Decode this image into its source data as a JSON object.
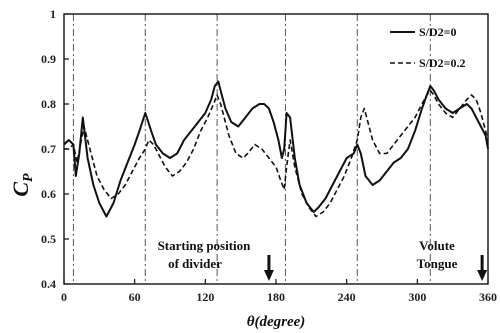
{
  "chart_data": {
    "type": "line",
    "title": "",
    "xlabel_symbol": "θ",
    "xlabel_unit": "(degree)",
    "ylabel_main": "C",
    "ylabel_sub": "P",
    "xlim": [
      0,
      360
    ],
    "ylim": [
      0.4,
      1.0
    ],
    "xticks": [
      0,
      60,
      120,
      180,
      240,
      300,
      360
    ],
    "yticks": [
      0.4,
      0.5,
      0.6,
      0.7,
      0.8,
      0.9,
      1.0
    ],
    "ytick_labels": [
      "0.4",
      "0.5",
      "0.6",
      "0.7",
      "0.8",
      "0.9",
      "1"
    ],
    "vertical_refs": [
      8,
      69,
      130,
      188,
      249,
      311
    ],
    "legend_position": "top-right",
    "series": [
      {
        "name": "S/D2=0",
        "style": "solid",
        "x": [
          0,
          4,
          8,
          10,
          13,
          16,
          20,
          25,
          30,
          36,
          42,
          48,
          54,
          60,
          64,
          69,
          74,
          78,
          84,
          90,
          96,
          102,
          108,
          114,
          120,
          125,
          128,
          131,
          134,
          137,
          142,
          148,
          154,
          160,
          166,
          170,
          174,
          178,
          182,
          185,
          187,
          189,
          192,
          196,
          200,
          206,
          212,
          216,
          222,
          228,
          234,
          240,
          246,
          249,
          252,
          256,
          262,
          268,
          274,
          280,
          286,
          292,
          298,
          304,
          308,
          311,
          314,
          318,
          324,
          330,
          336,
          342,
          346,
          350,
          354,
          358,
          360
        ],
        "y": [
          0.71,
          0.72,
          0.71,
          0.64,
          0.69,
          0.77,
          0.68,
          0.62,
          0.58,
          0.55,
          0.58,
          0.63,
          0.67,
          0.71,
          0.74,
          0.78,
          0.74,
          0.71,
          0.69,
          0.68,
          0.69,
          0.72,
          0.74,
          0.76,
          0.78,
          0.81,
          0.84,
          0.85,
          0.82,
          0.79,
          0.76,
          0.75,
          0.77,
          0.79,
          0.8,
          0.8,
          0.79,
          0.76,
          0.72,
          0.68,
          0.7,
          0.78,
          0.77,
          0.68,
          0.62,
          0.58,
          0.56,
          0.57,
          0.59,
          0.62,
          0.65,
          0.68,
          0.69,
          0.71,
          0.69,
          0.64,
          0.62,
          0.63,
          0.65,
          0.67,
          0.68,
          0.7,
          0.74,
          0.79,
          0.82,
          0.84,
          0.83,
          0.81,
          0.79,
          0.78,
          0.79,
          0.8,
          0.79,
          0.77,
          0.75,
          0.73,
          0.7
        ]
      },
      {
        "name": "S/D2=0.2",
        "style": "dashed",
        "x": [
          0,
          4,
          8,
          11,
          14,
          17,
          22,
          28,
          34,
          40,
          46,
          52,
          58,
          64,
          69,
          72,
          76,
          80,
          86,
          92,
          98,
          104,
          110,
          116,
          122,
          127,
          130,
          133,
          136,
          140,
          146,
          152,
          156,
          162,
          168,
          174,
          180,
          184,
          187,
          189,
          192,
          196,
          202,
          208,
          214,
          220,
          226,
          232,
          238,
          244,
          249,
          252,
          255,
          258,
          262,
          268,
          274,
          280,
          286,
          292,
          298,
          304,
          308,
          311,
          314,
          318,
          324,
          330,
          336,
          342,
          346,
          350,
          354,
          358,
          360
        ],
        "y": [
          0.7,
          0.7,
          0.71,
          0.67,
          0.71,
          0.75,
          0.7,
          0.64,
          0.61,
          0.59,
          0.6,
          0.62,
          0.65,
          0.68,
          0.7,
          0.72,
          0.71,
          0.69,
          0.66,
          0.64,
          0.65,
          0.67,
          0.7,
          0.74,
          0.77,
          0.8,
          0.82,
          0.8,
          0.77,
          0.73,
          0.69,
          0.68,
          0.69,
          0.71,
          0.7,
          0.68,
          0.66,
          0.63,
          0.61,
          0.66,
          0.72,
          0.66,
          0.6,
          0.57,
          0.55,
          0.56,
          0.58,
          0.61,
          0.64,
          0.68,
          0.72,
          0.77,
          0.79,
          0.76,
          0.72,
          0.69,
          0.69,
          0.71,
          0.73,
          0.75,
          0.77,
          0.8,
          0.82,
          0.83,
          0.82,
          0.8,
          0.78,
          0.77,
          0.79,
          0.81,
          0.82,
          0.81,
          0.78,
          0.74,
          0.72
        ]
      }
    ],
    "annotations": [
      {
        "id": "divider",
        "lines": [
          "Starting position",
          "of divider"
        ],
        "arrow_x": 174
      },
      {
        "id": "tongue",
        "lines": [
          "Volute",
          "Tongue"
        ],
        "arrow_x": 355
      }
    ]
  }
}
